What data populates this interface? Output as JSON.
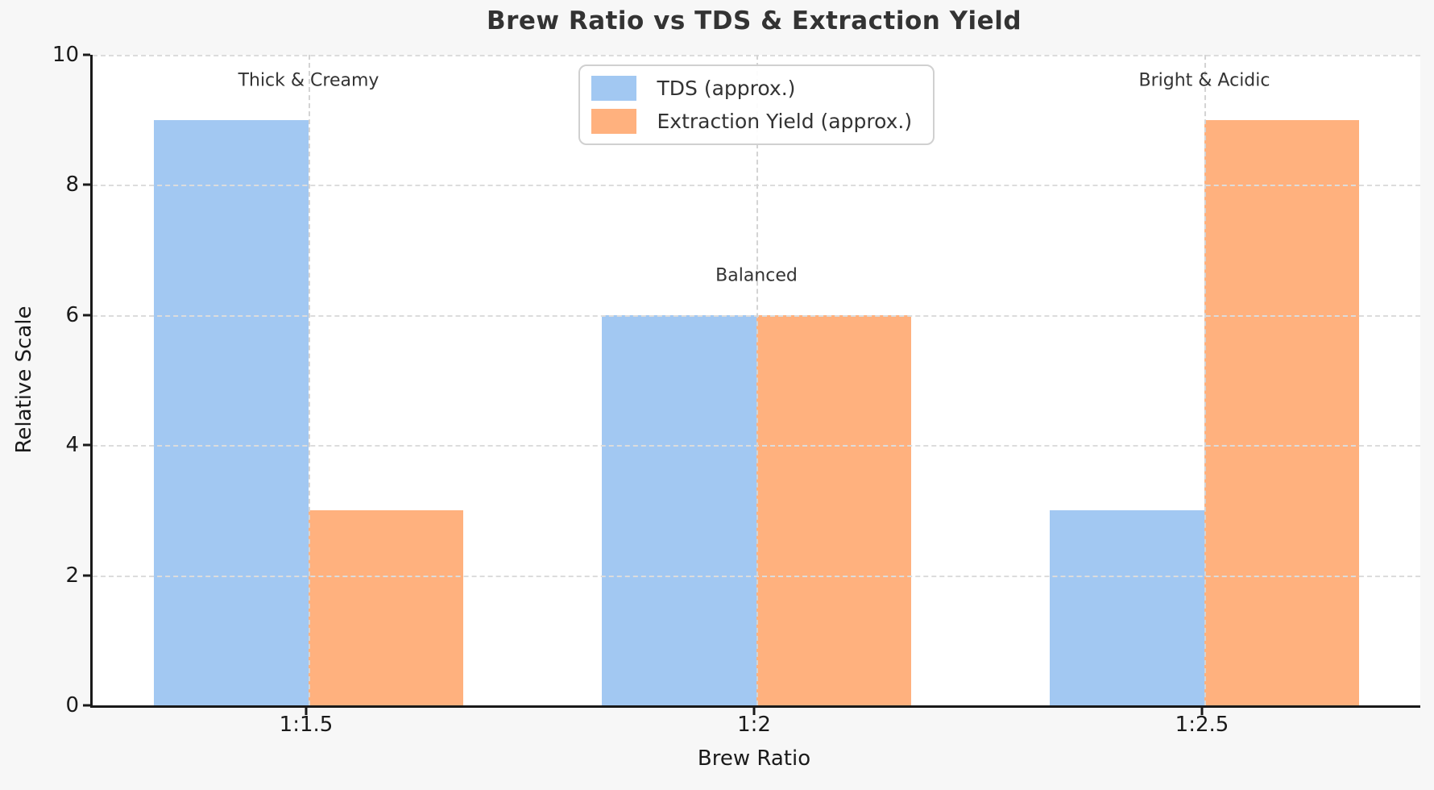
{
  "chart_data": {
    "type": "bar",
    "title": "Brew Ratio vs TDS & Extraction Yield",
    "xlabel": "Brew Ratio",
    "ylabel": "Relative Scale",
    "categories": [
      "1:1.5",
      "1:2",
      "1:2.5"
    ],
    "series": [
      {
        "name": "TDS (approx.)",
        "color": "#a2c8f2",
        "values": [
          9,
          6,
          3
        ]
      },
      {
        "name": "Extraction Yield (approx.)",
        "color": "#ffb17e",
        "values": [
          3,
          6,
          9
        ]
      }
    ],
    "annotations": [
      {
        "text": "Thick & Creamy",
        "group": 0,
        "y": 9.6
      },
      {
        "text": "Balanced",
        "group": 1,
        "y": 6.6
      },
      {
        "text": "Bright & Acidic",
        "group": 2,
        "y": 9.6
      }
    ],
    "yticks": [
      0,
      2,
      4,
      6,
      8,
      10
    ],
    "ylim": [
      0,
      10
    ],
    "grid": {
      "style": "dashed",
      "horizontal_at": [
        2,
        4,
        6,
        8,
        10
      ],
      "vertical_at_group_centers": true,
      "above_bars": true
    },
    "legend_position": "upper center",
    "legend_entries": [
      "TDS (approx.)",
      "Extraction Yield (approx.)"
    ]
  },
  "style_colors": {
    "figure_background": "#f7f7f7",
    "plot_background": "#ffffff",
    "grid": "#dcdcdc",
    "spine": "#1a1a1a",
    "title_text": "#333333",
    "tds_blue": "#a2c8f2",
    "yield_orange": "#ffb17e"
  }
}
